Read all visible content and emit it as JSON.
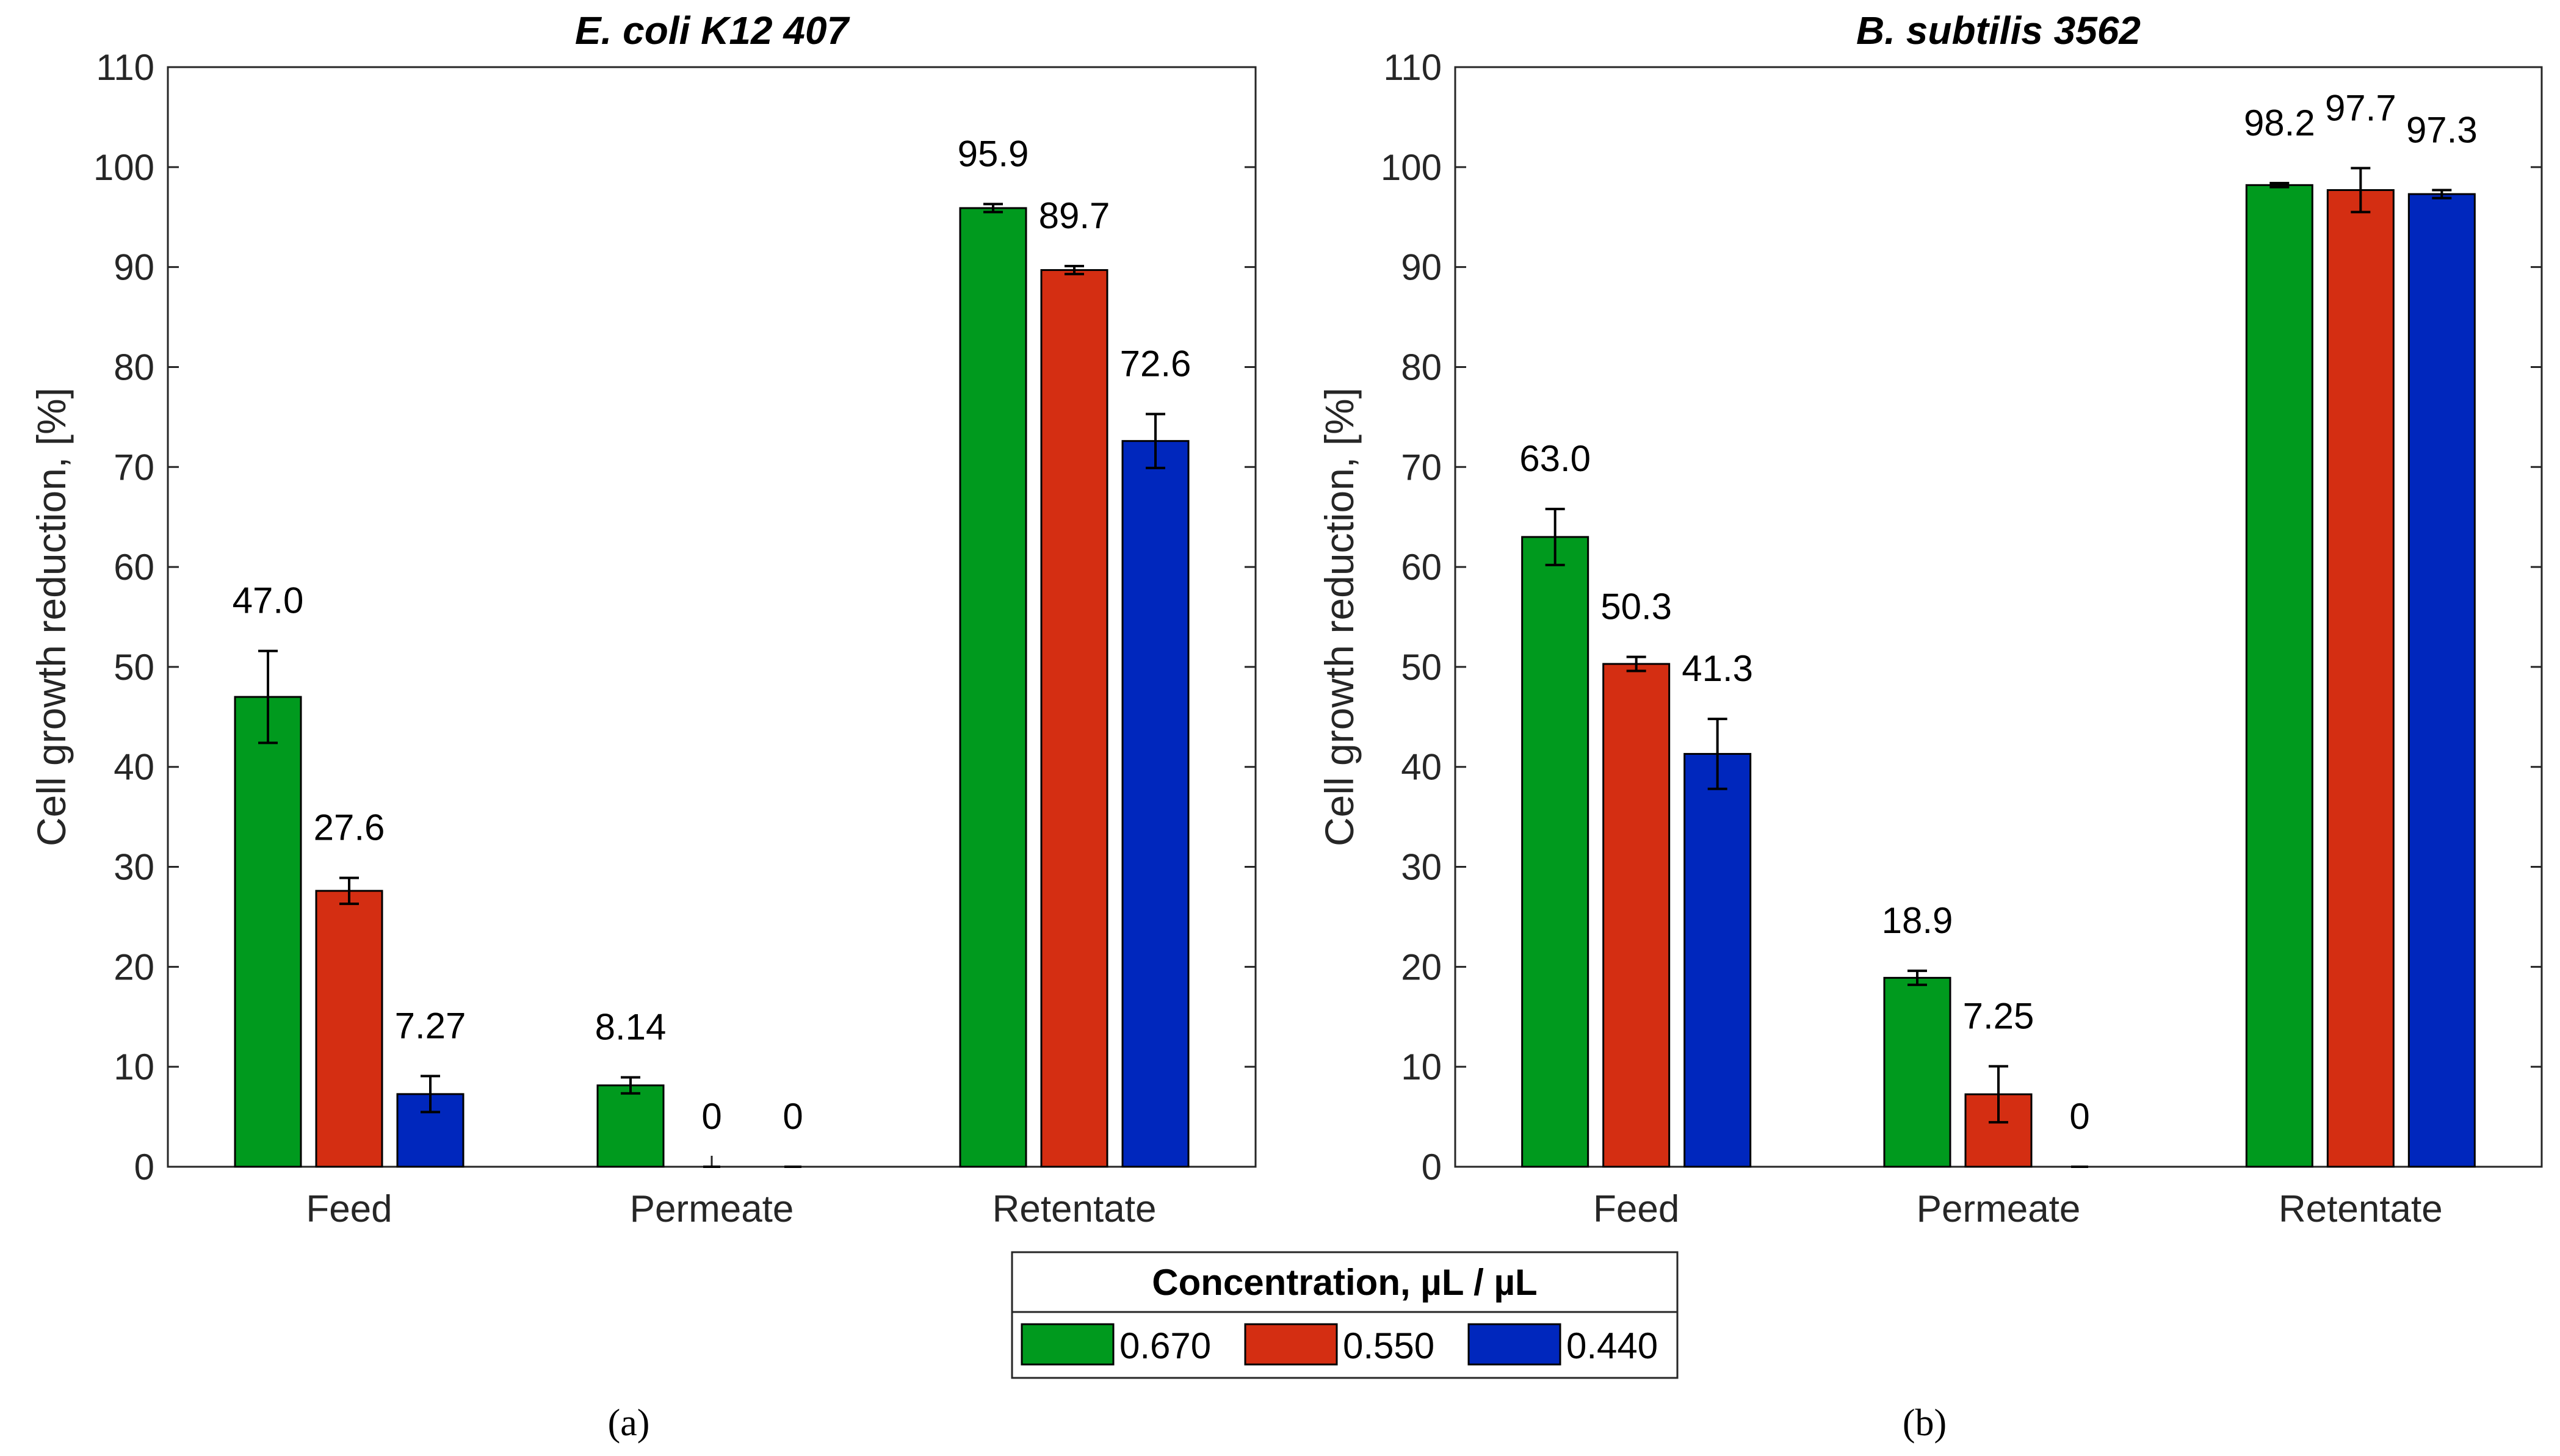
{
  "chart_data": [
    {
      "type": "bar",
      "title": "E. coli K12 407",
      "ylabel": "Cell growth reduction, [%]",
      "xlabel": "",
      "categories": [
        "Feed",
        "Permeate",
        "Retentate"
      ],
      "ylim": [
        0,
        110
      ],
      "yticks": [
        0,
        10,
        20,
        30,
        40,
        50,
        60,
        70,
        80,
        90,
        100,
        110
      ],
      "series": [
        {
          "name": "0.670",
          "color": "#009a1e",
          "values": [
            47.0,
            8.14,
            95.9
          ],
          "errors": [
            4.6,
            0.8,
            0.4
          ],
          "labels": [
            "47.0",
            "8.14",
            "95.9"
          ]
        },
        {
          "name": "0.550",
          "color": "#d42e12",
          "values": [
            27.6,
            0,
            89.7
          ],
          "errors": [
            1.3,
            0,
            0.4
          ],
          "labels": [
            "27.6",
            "0",
            "89.7"
          ]
        },
        {
          "name": "0.440",
          "color": "#0027bd",
          "values": [
            7.27,
            0,
            72.6
          ],
          "errors": [
            1.8,
            0,
            2.7
          ],
          "labels": [
            "7.27",
            "0",
            "72.6"
          ]
        }
      ],
      "sublabel": "(a)"
    },
    {
      "type": "bar",
      "title": "B. subtilis 3562",
      "ylabel": "Cell growth reduction, [%]",
      "xlabel": "",
      "categories": [
        "Feed",
        "Permeate",
        "Retentate"
      ],
      "ylim": [
        0,
        110
      ],
      "yticks": [
        0,
        10,
        20,
        30,
        40,
        50,
        60,
        70,
        80,
        90,
        100,
        110
      ],
      "series": [
        {
          "name": "0.670",
          "color": "#009a1e",
          "values": [
            63.0,
            18.9,
            98.2
          ],
          "errors": [
            2.8,
            0.7,
            0.2
          ],
          "labels": [
            "63.0",
            "18.9",
            "98.2"
          ]
        },
        {
          "name": "0.550",
          "color": "#d42e12",
          "values": [
            50.3,
            7.25,
            97.7
          ],
          "errors": [
            0.7,
            2.8,
            2.2
          ],
          "labels": [
            "50.3",
            "7.25",
            "97.7"
          ]
        },
        {
          "name": "0.440",
          "color": "#0027bd",
          "values": [
            41.3,
            0,
            97.3
          ],
          "errors": [
            3.5,
            0,
            0.4
          ],
          "labels": [
            "41.3",
            "0",
            "97.3"
          ]
        }
      ],
      "sublabel": "(b)"
    }
  ],
  "legend": {
    "title": "Concentration, µL / µL",
    "entries": [
      {
        "label": "0.670",
        "color": "#009a1e"
      },
      {
        "label": "0.550",
        "color": "#d42e12"
      },
      {
        "label": "0.440",
        "color": "#0027bd"
      }
    ]
  }
}
